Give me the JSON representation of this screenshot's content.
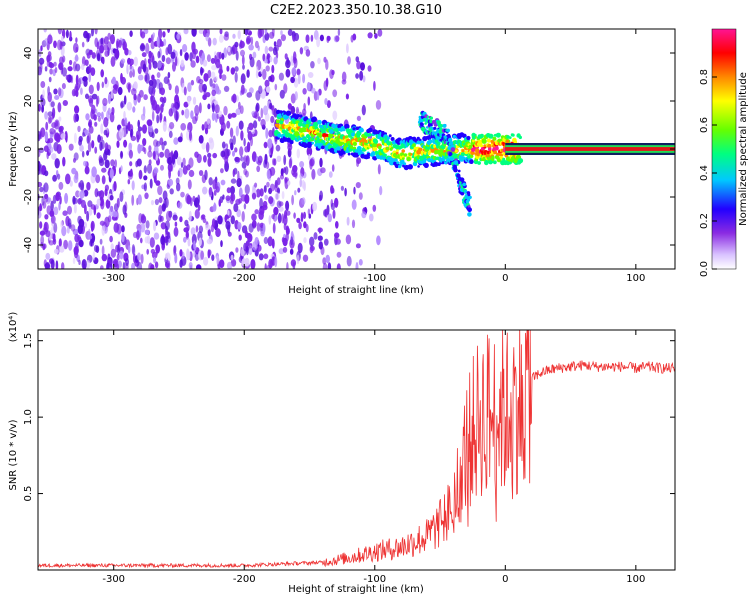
{
  "title": "C2E2.2023.350.10.38.G10",
  "colors": {
    "snr_line": "#ee3333",
    "carrier_band": "#e01818",
    "colormap": [
      "#ffffff",
      "#d9c2ff",
      "#8a2be2",
      "#2200ff",
      "#00c8ff",
      "#00ff80",
      "#66ff00",
      "#ffff00",
      "#ff8800",
      "#ff0000",
      "#ff1493"
    ]
  },
  "chart_data": [
    {
      "type": "heatmap",
      "title": "",
      "xlabel": "Height of straight line (km)",
      "ylabel": "Frequency (Hz)",
      "xlim": [
        -358,
        130
      ],
      "ylim": [
        -50,
        50
      ],
      "xticks": [
        "-300",
        "-200",
        "-100",
        "0",
        "100"
      ],
      "yticks": [
        "40",
        "20",
        "0",
        "-20",
        "-40"
      ],
      "colorbar": {
        "label": "Normalized spectral amplitude",
        "range": [
          0,
          1
        ],
        "ticks": [
          "0.0",
          "0.2",
          "0.4",
          "0.6",
          "0.8"
        ]
      },
      "features": {
        "noise_region_x": [
          -358,
          -120
        ],
        "carrier_track": [
          {
            "x": -175,
            "y": 10
          },
          {
            "x": -150,
            "y": 7
          },
          {
            "x": -125,
            "y": 4
          },
          {
            "x": -100,
            "y": 2
          },
          {
            "x": -80,
            "y": -2
          },
          {
            "x": -60,
            "y": -1
          },
          {
            "x": -40,
            "y": 0
          },
          {
            "x": -20,
            "y": 0
          },
          {
            "x": 0,
            "y": 0
          },
          {
            "x": 130,
            "y": 0
          }
        ],
        "side_branch": [
          {
            "x": -65,
            "y": 12
          },
          {
            "x": -45,
            "y": 6
          },
          {
            "x": -32,
            "y": -18
          },
          {
            "x": -27,
            "y": -24
          }
        ]
      }
    },
    {
      "type": "line",
      "title": "",
      "xlabel": "Height of straight line (km)",
      "ylabel": "SNR (10 * v/v)",
      "ylabel_multiplier": "(x10⁴)",
      "xlim": [
        -358,
        130
      ],
      "ylim": [
        0,
        1.57
      ],
      "xticks": [
        "-300",
        "-200",
        "-100",
        "0",
        "100"
      ],
      "yticks": [
        "1.5",
        "1.0",
        "0.5"
      ],
      "series": [
        {
          "x": [
            -358,
            -300,
            -250,
            -200,
            -170,
            -140,
            -120,
            -100,
            -80,
            -60,
            -50,
            -45,
            -40,
            -35,
            -30,
            -25,
            -20,
            -15,
            -10,
            -5,
            0,
            5,
            10,
            15,
            20,
            25,
            30,
            40,
            50,
            60,
            70,
            80,
            90,
            100,
            110,
            120,
            130
          ],
          "values": [
            0.03,
            0.03,
            0.03,
            0.03,
            0.04,
            0.05,
            0.08,
            0.12,
            0.15,
            0.22,
            0.3,
            0.35,
            0.45,
            0.6,
            0.8,
            0.9,
            1.0,
            1.05,
            1.0,
            1.05,
            1.02,
            1.08,
            1.1,
            1.15,
            1.25,
            1.28,
            1.3,
            1.32,
            1.33,
            1.34,
            1.33,
            1.33,
            1.33,
            1.32,
            1.33,
            1.32,
            1.32
          ]
        }
      ]
    }
  ]
}
